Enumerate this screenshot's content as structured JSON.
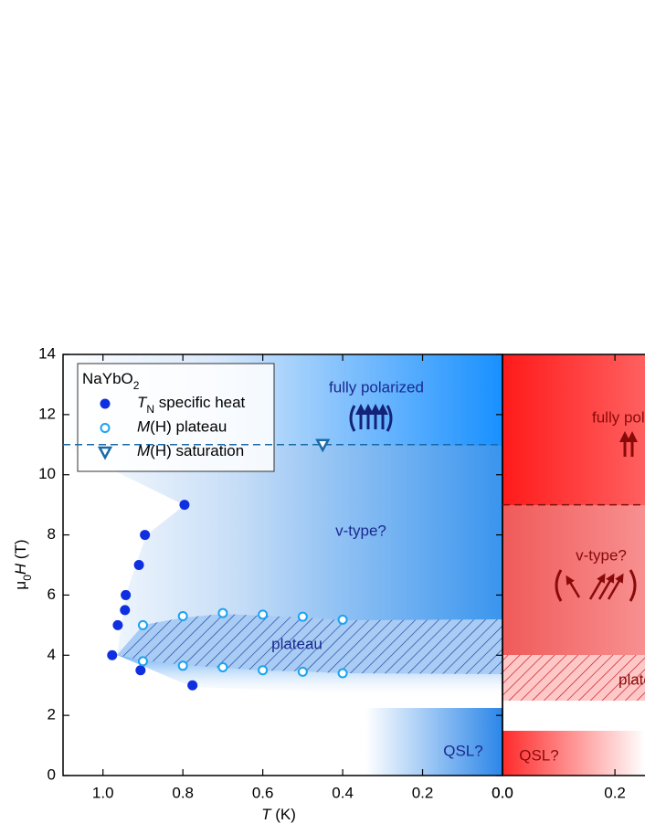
{
  "chart_data": [
    {
      "type": "scatter",
      "y_label": [
        "μ",
        "0",
        "H",
        " (T)"
      ],
      "x_label": [
        "T",
        " (K)"
      ],
      "xlim": [
        1.1,
        0
      ],
      "ylim": [
        0,
        14
      ],
      "xticks": [
        {
          "value": 1.0,
          "label": "1.0"
        },
        {
          "value": 0.8,
          "label": "0.8"
        },
        {
          "value": 0.6,
          "label": "0.6"
        },
        {
          "value": 0.4,
          "label": "0.4"
        },
        {
          "value": 0.2,
          "label": "0.2"
        },
        {
          "value": 0,
          "label": "0.0"
        }
      ],
      "yticks": [
        0,
        2,
        4,
        6,
        8,
        10,
        12,
        14
      ],
      "hline": 11,
      "legend": {
        "title": [
          "NaYbO",
          "2"
        ],
        "position": "upper left"
      },
      "series": [
        {
          "name": [
            "T",
            "N",
            " specific heat"
          ],
          "color": "#0f2fe0",
          "marker": "circle",
          "x": [
            0.977,
            0.963,
            0.945,
            0.943,
            0.91,
            0.895,
            0.796,
            0.906,
            0.776
          ],
          "values": [
            4.0,
            5.0,
            5.5,
            6.0,
            7.0,
            8.0,
            9.0,
            3.5,
            3.0
          ]
        },
        {
          "name": [
            "M",
            "(H) plateau"
          ],
          "color": "#1aa3f0",
          "marker": "open-circle",
          "x": [
            0.9,
            0.8,
            0.7,
            0.6,
            0.5,
            0.4,
            0.9,
            0.8,
            0.7,
            0.6,
            0.5,
            0.4
          ],
          "values": [
            5.0,
            5.3,
            5.4,
            5.35,
            5.28,
            5.18,
            3.8,
            3.65,
            3.6,
            3.5,
            3.45,
            3.4
          ]
        },
        {
          "name": [
            "M",
            "(H) saturation"
          ],
          "color": "#1a6aa8",
          "marker": "triangle-down",
          "x": [
            0.45
          ],
          "values": [
            11.0
          ]
        }
      ],
      "annotations": [
        "fully polarized",
        "v-type?",
        "plateau",
        "QSL?"
      ]
    },
    {
      "type": "scatter",
      "xlim": [
        0,
        0.26
      ],
      "ylim": [
        0,
        14
      ],
      "xticks": [
        {
          "value": 0,
          "label": "0.0"
        },
        {
          "value": 0.2,
          "label": "0.2"
        }
      ],
      "hline": 9,
      "annotations": [
        "fully polarized",
        "v-type?",
        "plateau",
        "QSL?"
      ]
    }
  ]
}
